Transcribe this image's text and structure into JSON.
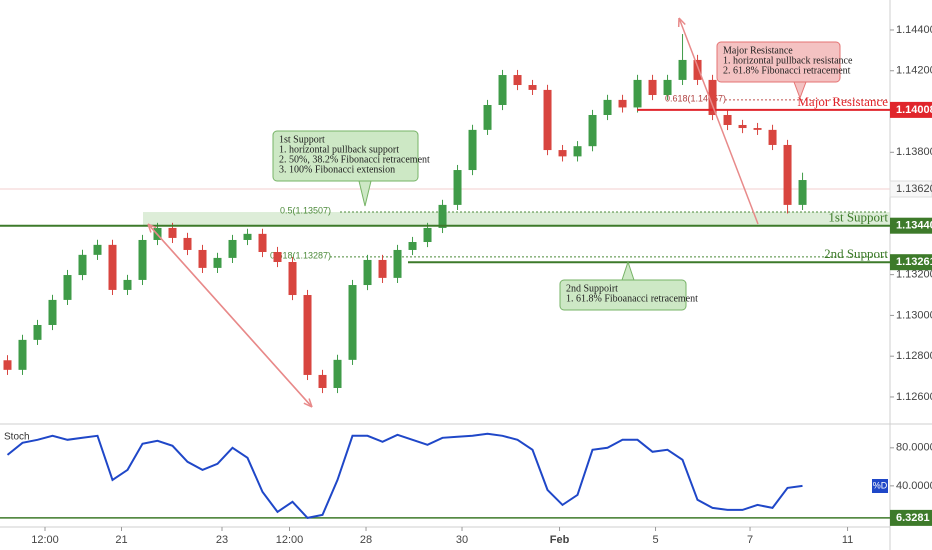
{
  "chart_data": {
    "type": "candlestick",
    "colors": {
      "up": "#3f9b48",
      "down": "#d8453f"
    },
    "ohlc": {
      "open": [
        1.1278,
        1.12733,
        1.1288,
        1.12953,
        1.13076,
        1.13198,
        1.13297,
        1.13346,
        1.13125,
        1.13174,
        1.1337,
        1.13429,
        1.1338,
        1.13321,
        1.13233,
        1.13282,
        1.1337,
        1.134,
        1.13311,
        1.13262,
        1.131,
        1.12708,
        1.12644,
        1.12782,
        1.13149,
        1.13272,
        1.13184,
        1.13321,
        1.1336,
        1.13429,
        1.13542,
        1.13713,
        1.1391,
        1.14032,
        1.14179,
        1.1413,
        1.14106,
        1.13811,
        1.1378,
        1.1383,
        1.13983,
        1.14057,
        1.1402,
        1.14155,
        1.14081,
        1.14155,
        1.14253,
        1.14155,
        1.13983,
        1.13934,
        1.13919,
        1.1391,
        1.13836,
        1.13542
      ],
      "high": [
        1.12805,
        1.12905,
        1.12978,
        1.13101,
        1.13223,
        1.13322,
        1.13371,
        1.13371,
        1.13199,
        1.13395,
        1.13454,
        1.13454,
        1.13405,
        1.13346,
        1.13307,
        1.13395,
        1.13425,
        1.13425,
        1.13336,
        1.13287,
        1.13125,
        1.12733,
        1.12807,
        1.13174,
        1.13297,
        1.13297,
        1.13346,
        1.13385,
        1.13454,
        1.13567,
        1.13738,
        1.13935,
        1.14057,
        1.14204,
        1.14204,
        1.14155,
        1.14131,
        1.13836,
        1.13855,
        1.14008,
        1.14082,
        1.14082,
        1.1418,
        1.1418,
        1.1418,
        1.1438,
        1.14278,
        1.1418,
        1.14008,
        1.13959,
        1.13944,
        1.13935,
        1.13861,
        1.137
      ],
      "low": [
        1.12708,
        1.12708,
        1.12855,
        1.12928,
        1.13051,
        1.13173,
        1.13272,
        1.131,
        1.131,
        1.13149,
        1.13345,
        1.13355,
        1.13296,
        1.13208,
        1.13208,
        1.13257,
        1.13345,
        1.13286,
        1.13237,
        1.13075,
        1.12683,
        1.12619,
        1.12619,
        1.12757,
        1.13124,
        1.13159,
        1.13159,
        1.13296,
        1.13335,
        1.13404,
        1.13517,
        1.13688,
        1.13885,
        1.14007,
        1.14105,
        1.14081,
        1.13786,
        1.13755,
        1.13755,
        1.13805,
        1.13958,
        1.13995,
        1.13995,
        1.14056,
        1.14056,
        1.1413,
        1.1413,
        1.13958,
        1.13909,
        1.13894,
        1.13885,
        1.13811,
        1.135,
        1.13517
      ],
      "close": [
        1.12733,
        1.1288,
        1.12953,
        1.13076,
        1.13198,
        1.13297,
        1.13346,
        1.13125,
        1.13174,
        1.1337,
        1.13429,
        1.1338,
        1.13321,
        1.13233,
        1.13282,
        1.1337,
        1.134,
        1.13311,
        1.13262,
        1.131,
        1.12708,
        1.12644,
        1.12782,
        1.13149,
        1.13272,
        1.13184,
        1.13321,
        1.1336,
        1.13429,
        1.13542,
        1.13713,
        1.1391,
        1.14032,
        1.14179,
        1.1413,
        1.14106,
        1.13811,
        1.1378,
        1.1383,
        1.13983,
        1.14057,
        1.1402,
        1.14155,
        1.14081,
        1.14155,
        1.14253,
        1.14155,
        1.13983,
        1.13934,
        1.13919,
        1.1391,
        1.13836,
        1.13542,
        1.13664
      ]
    },
    "xlim": [
      -0.5,
      58.83
    ],
    "xticks": [
      {
        "value": 2.5,
        "label": "12:00"
      },
      {
        "value": 7.6,
        "label": "21"
      },
      {
        "value": 14.3,
        "label": "23"
      },
      {
        "value": 18.8,
        "label": "12:00"
      },
      {
        "value": 23.9,
        "label": "28"
      },
      {
        "value": 30.3,
        "label": "30"
      },
      {
        "value": 36.8,
        "label": "Feb"
      },
      {
        "value": 43.2,
        "label": "5"
      },
      {
        "value": 49.5,
        "label": "7"
      },
      {
        "value": 56.0,
        "label": "11"
      }
    ],
    "ylim": [
      1.12487,
      1.14547
    ],
    "yticks": [
      {
        "value": 1.144,
        "label": "1.14400"
      },
      {
        "value": 1.142,
        "label": "1.14200"
      },
      {
        "value": 1.138,
        "label": "1.13800"
      },
      {
        "value": 1.132,
        "label": "1.13200"
      },
      {
        "value": 1.13,
        "label": "1.13000"
      },
      {
        "value": 1.128,
        "label": "1.12800"
      },
      {
        "value": 1.126,
        "label": "1.12600"
      }
    ],
    "current_price": {
      "value": 1.1362,
      "label": "1.13620"
    },
    "levels": [
      {
        "name": "Major Resistance",
        "price": {
          "value": 1.14008,
          "label": "1.14008"
        },
        "color": "#e0252b"
      },
      {
        "name": "1st Support",
        "price": {
          "value": 1.1344,
          "label": "1.13440"
        },
        "color": "#3d7a2a"
      },
      {
        "name": "2nd Support",
        "price": {
          "value": 1.13261,
          "label": "1.13261"
        },
        "color": "#3d7a2a"
      }
    ],
    "fib": [
      {
        "label": "0.618(1.14057)",
        "value": 1.14057
      },
      {
        "label": "0.5(1.13507)",
        "value": 1.13507
      },
      {
        "label": "0.618(1.13287)",
        "value": 1.13287
      }
    ],
    "callouts": [
      {
        "lines": [
          "Major Resistance",
          "1. horizontal pullback resistance",
          "2. 61.8% Fibonacci retracement"
        ]
      },
      {
        "lines": [
          "1st Support",
          "1. horizontal pullback support",
          "2. 50%, 38.2% Fibonacci retracement",
          "3. 100% Fibonacci extension"
        ]
      },
      {
        "lines": [
          "2nd Suppoirt",
          "1. 61.8% Fiboanacci retracement"
        ]
      }
    ],
    "stoch": {
      "title": "Stoch",
      "legend": "%D",
      "color": "#1f47c8",
      "ylim": [
        2,
        104
      ],
      "yticks": [
        {
          "value": 80,
          "label": "80.0000"
        },
        {
          "value": 40,
          "label": "40.0000"
        }
      ],
      "level": 6.3281,
      "values": [
        72.6,
        85.3,
        88.4,
        92.6,
        88.4,
        90.5,
        92.6,
        46.3,
        56.8,
        84.2,
        87.4,
        82.1,
        65.3,
        56.8,
        63.2,
        80.0,
        69.5,
        33.7,
        12.6,
        23.2,
        6.3,
        9.5,
        46.3,
        92.6,
        92.6,
        86.3,
        93.7,
        88.4,
        83.2,
        90.5,
        91.6,
        92.6,
        94.7,
        92.6,
        88.4,
        77.9,
        35.8,
        20.0,
        30.5,
        77.9,
        80.0,
        88.4,
        88.4,
        75.8,
        77.9,
        67.4,
        25.3,
        16.8,
        14.7,
        14.7,
        20.0,
        16.8,
        37.9,
        40.0
      ]
    }
  }
}
